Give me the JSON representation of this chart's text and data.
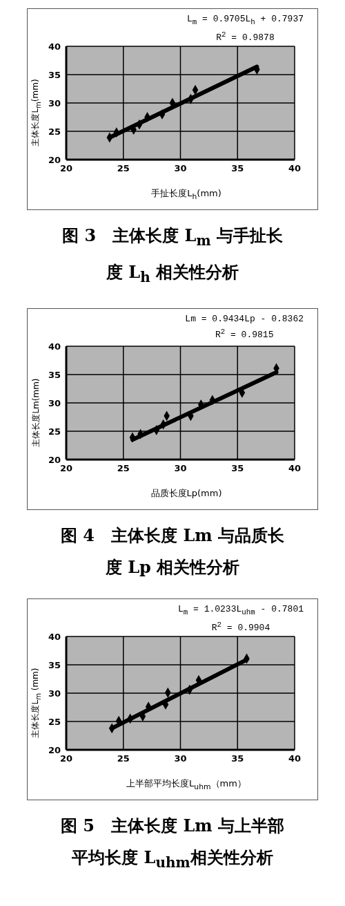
{
  "chart_data": [
    {
      "type": "scatter",
      "title": "图 3　主体长度 L$_{m}$ 与手扯长度 L$_{h}$ 相关性分析",
      "xlabel": "手扯长度L$_{h}$(mm)",
      "ylabel": "主体长度L$_{m}$(mm)",
      "annotations": [
        "L$_{m}$ = 0.9705L$_{h}$ + 0.7937",
        "R$^{2}$ = 0.9878"
      ],
      "xlim": [
        20,
        40
      ],
      "xticks": [
        20,
        25,
        30,
        35,
        40
      ],
      "ylim": [
        20,
        40
      ],
      "yticks": [
        20,
        25,
        30,
        35,
        40
      ],
      "grid": true,
      "series": [
        {
          "color": "#000000",
          "marker": "diamond",
          "x": [
            23.8,
            24.4,
            25.9,
            26.4,
            27.1,
            28.4,
            29.3,
            30.9,
            31.3,
            36.7
          ],
          "values": [
            23.9,
            24.8,
            25.3,
            26.2,
            27.5,
            28.0,
            30.0,
            30.7,
            32.3,
            35.9
          ]
        },
        {
          "type": "line",
          "color": "#000000",
          "x": [
            23.8,
            36.7
          ],
          "values": [
            23.9,
            36.4
          ]
        }
      ]
    },
    {
      "type": "scatter",
      "title": "图 4　主体长度 Lm 与品质长度 Lp 相关性分析",
      "xlabel": "品质长度Lp(mm)",
      "ylabel": "主体长度Lm(mm)",
      "annotations": [
        "Lm = 0.9434Lp - 0.8362",
        "R$^{2}$ = 0.9815"
      ],
      "xlim": [
        20,
        40
      ],
      "xticks": [
        20,
        25,
        30,
        35,
        40
      ],
      "ylim": [
        20,
        40
      ],
      "yticks": [
        20,
        25,
        30,
        35,
        40
      ],
      "grid": true,
      "series": [
        {
          "color": "#000000",
          "marker": "diamond",
          "x": [
            25.8,
            26.5,
            27.9,
            28.5,
            28.8,
            30.9,
            31.8,
            32.8,
            35.4,
            38.4
          ],
          "values": [
            23.9,
            24.5,
            25.2,
            26.2,
            27.7,
            27.7,
            29.7,
            30.5,
            31.8,
            36.1
          ]
        },
        {
          "type": "line",
          "color": "#000000",
          "x": [
            25.8,
            38.4
          ],
          "values": [
            23.5,
            35.4
          ]
        }
      ]
    },
    {
      "type": "scatter",
      "title": "图 5　主体长度 Lm 与上半部平均长度 L$_{uhm}$相关性分析",
      "xlabel": "上半部平均长度L$_{uhm}$（mm）",
      "ylabel": "主体长度L$_{m}$ (mm)",
      "annotations": [
        "L$_{m}$ = 1.0233L$_{uhm}$ - 0.7801",
        "R$^{2}$ = 0.9904"
      ],
      "xlim": [
        20,
        40
      ],
      "xticks": [
        20,
        25,
        30,
        35,
        40
      ],
      "ylim": [
        20,
        40
      ],
      "yticks": [
        20,
        25,
        30,
        35,
        40
      ],
      "grid": true,
      "series": [
        {
          "color": "#000000",
          "marker": "diamond",
          "x": [
            24.0,
            24.6,
            25.6,
            26.7,
            27.2,
            28.7,
            28.9,
            30.8,
            31.6,
            35.8
          ],
          "values": [
            23.8,
            25.1,
            25.5,
            25.9,
            27.6,
            28.0,
            30.1,
            30.6,
            32.3,
            36.1
          ]
        },
        {
          "type": "line",
          "color": "#000000",
          "x": [
            24.0,
            35.8
          ],
          "values": [
            23.8,
            35.9
          ]
        }
      ]
    }
  ]
}
